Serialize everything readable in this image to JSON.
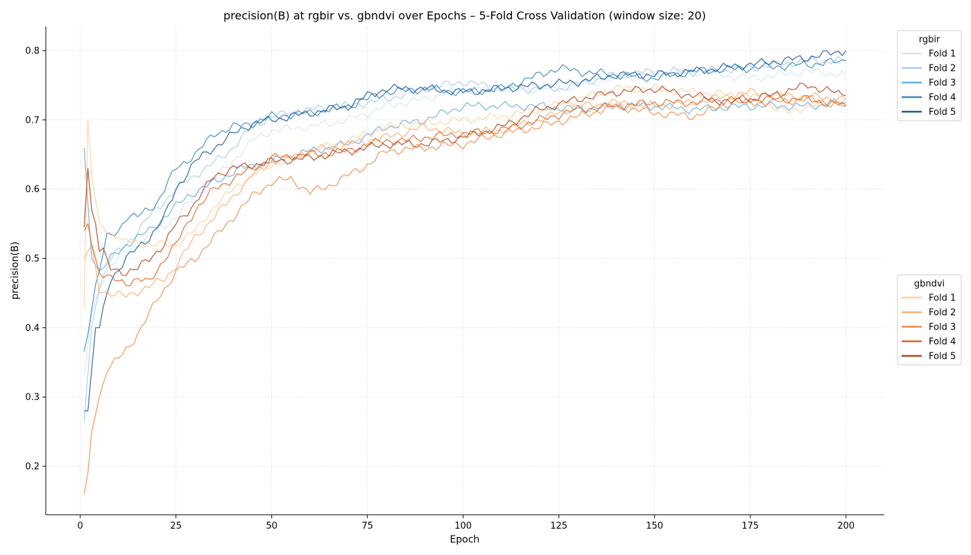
{
  "chart_data": {
    "type": "line",
    "title": "precision(B) at rgbir vs. gbndvi over Epochs – 5-Fold Cross Validation (window size: 20)",
    "xlabel": "Epoch",
    "ylabel": "precision(B)",
    "xlim": [
      -9,
      210
    ],
    "ylim": [
      0.13,
      0.835
    ],
    "xticks": [
      0,
      25,
      50,
      75,
      100,
      125,
      150,
      175,
      200
    ],
    "yticks": [
      0.2,
      0.3,
      0.4,
      0.5,
      0.6,
      0.7,
      0.8
    ],
    "grid": true,
    "legend_groups": [
      {
        "title": "rgbir",
        "placement": "upper-right-outside",
        "entries": [
          "Fold 1",
          "Fold 2",
          "Fold 3",
          "Fold 4",
          "Fold 5"
        ]
      },
      {
        "title": "gbndvi",
        "placement": "middle-right-outside",
        "entries": [
          "Fold 1",
          "Fold 2",
          "Fold 3",
          "Fold 4",
          "Fold 5"
        ]
      }
    ],
    "series": [
      {
        "name": "Fold 1",
        "group": "rgbir",
        "color": "#d4e4f4",
        "points": [
          [
            1,
            0.33
          ],
          [
            3,
            0.42
          ],
          [
            5,
            0.46
          ],
          [
            8,
            0.49
          ],
          [
            12,
            0.51
          ],
          [
            18,
            0.53
          ],
          [
            25,
            0.56
          ],
          [
            30,
            0.59
          ],
          [
            38,
            0.63
          ],
          [
            45,
            0.67
          ],
          [
            50,
            0.685
          ],
          [
            60,
            0.69
          ],
          [
            70,
            0.7
          ],
          [
            80,
            0.72
          ],
          [
            90,
            0.73
          ],
          [
            100,
            0.745
          ],
          [
            110,
            0.745
          ],
          [
            125,
            0.745
          ],
          [
            140,
            0.76
          ],
          [
            150,
            0.765
          ],
          [
            160,
            0.77
          ],
          [
            175,
            0.76
          ],
          [
            190,
            0.77
          ],
          [
            200,
            0.765
          ]
        ]
      },
      {
        "name": "Fold 2",
        "group": "rgbir",
        "color": "#a9cce3",
        "points": [
          [
            1,
            0.265
          ],
          [
            3,
            0.4
          ],
          [
            5,
            0.46
          ],
          [
            8,
            0.5
          ],
          [
            12,
            0.52
          ],
          [
            18,
            0.56
          ],
          [
            25,
            0.6
          ],
          [
            30,
            0.62
          ],
          [
            38,
            0.65
          ],
          [
            45,
            0.69
          ],
          [
            50,
            0.705
          ],
          [
            60,
            0.715
          ],
          [
            70,
            0.72
          ],
          [
            80,
            0.73
          ],
          [
            90,
            0.745
          ],
          [
            100,
            0.755
          ],
          [
            110,
            0.745
          ],
          [
            125,
            0.745
          ],
          [
            140,
            0.765
          ],
          [
            150,
            0.77
          ],
          [
            160,
            0.77
          ],
          [
            175,
            0.775
          ],
          [
            190,
            0.785
          ],
          [
            200,
            0.785
          ]
        ]
      },
      {
        "name": "Fold 3",
        "group": "rgbir",
        "color": "#6baed6",
        "points": [
          [
            1,
            0.66
          ],
          [
            3,
            0.5
          ],
          [
            5,
            0.48
          ],
          [
            8,
            0.5
          ],
          [
            12,
            0.52
          ],
          [
            18,
            0.54
          ],
          [
            22,
            0.56
          ],
          [
            28,
            0.59
          ],
          [
            35,
            0.61
          ],
          [
            42,
            0.63
          ],
          [
            50,
            0.64
          ],
          [
            60,
            0.655
          ],
          [
            70,
            0.665
          ],
          [
            80,
            0.69
          ],
          [
            90,
            0.7
          ],
          [
            100,
            0.72
          ],
          [
            110,
            0.72
          ],
          [
            120,
            0.72
          ],
          [
            130,
            0.715
          ],
          [
            140,
            0.72
          ],
          [
            150,
            0.72
          ],
          [
            160,
            0.715
          ],
          [
            175,
            0.72
          ],
          [
            190,
            0.72
          ],
          [
            200,
            0.725
          ]
        ]
      },
      {
        "name": "Fold 4",
        "group": "rgbir",
        "color": "#3b87c2",
        "points": [
          [
            1,
            0.365
          ],
          [
            4,
            0.46
          ],
          [
            7,
            0.53
          ],
          [
            10,
            0.54
          ],
          [
            12,
            0.56
          ],
          [
            15,
            0.56
          ],
          [
            20,
            0.58
          ],
          [
            25,
            0.63
          ],
          [
            30,
            0.65
          ],
          [
            35,
            0.68
          ],
          [
            40,
            0.69
          ],
          [
            45,
            0.695
          ],
          [
            50,
            0.705
          ],
          [
            60,
            0.71
          ],
          [
            70,
            0.72
          ],
          [
            80,
            0.74
          ],
          [
            90,
            0.745
          ],
          [
            100,
            0.74
          ],
          [
            110,
            0.745
          ],
          [
            120,
            0.765
          ],
          [
            125,
            0.775
          ],
          [
            130,
            0.77
          ],
          [
            140,
            0.765
          ],
          [
            150,
            0.76
          ],
          [
            160,
            0.77
          ],
          [
            175,
            0.775
          ],
          [
            190,
            0.78
          ],
          [
            200,
            0.785
          ]
        ]
      },
      {
        "name": "Fold 5",
        "group": "rgbir",
        "color": "#1c5a9b",
        "points": [
          [
            1,
            0.28
          ],
          [
            2,
            0.28
          ],
          [
            4,
            0.4
          ],
          [
            5,
            0.4
          ],
          [
            6,
            0.43
          ],
          [
            8,
            0.47
          ],
          [
            12,
            0.5
          ],
          [
            18,
            0.53
          ],
          [
            22,
            0.56
          ],
          [
            25,
            0.6
          ],
          [
            30,
            0.64
          ],
          [
            35,
            0.66
          ],
          [
            40,
            0.68
          ],
          [
            45,
            0.695
          ],
          [
            50,
            0.7
          ],
          [
            60,
            0.71
          ],
          [
            70,
            0.72
          ],
          [
            75,
            0.735
          ],
          [
            80,
            0.745
          ],
          [
            90,
            0.745
          ],
          [
            100,
            0.74
          ],
          [
            110,
            0.745
          ],
          [
            120,
            0.75
          ],
          [
            130,
            0.755
          ],
          [
            140,
            0.765
          ],
          [
            150,
            0.765
          ],
          [
            160,
            0.77
          ],
          [
            175,
            0.78
          ],
          [
            190,
            0.79
          ],
          [
            200,
            0.8
          ]
        ]
      },
      {
        "name": "Fold 1",
        "group": "gbndvi",
        "color": "#fdd0a2",
        "points": [
          [
            1,
            0.43
          ],
          [
            2,
            0.7
          ],
          [
            3,
            0.62
          ],
          [
            5,
            0.55
          ],
          [
            7,
            0.54
          ],
          [
            10,
            0.53
          ],
          [
            12,
            0.525
          ],
          [
            18,
            0.52
          ],
          [
            25,
            0.52
          ],
          [
            30,
            0.54
          ],
          [
            35,
            0.575
          ],
          [
            40,
            0.6
          ],
          [
            45,
            0.62
          ],
          [
            50,
            0.635
          ],
          [
            60,
            0.655
          ],
          [
            70,
            0.67
          ],
          [
            80,
            0.69
          ],
          [
            90,
            0.695
          ],
          [
            100,
            0.7
          ],
          [
            110,
            0.705
          ],
          [
            120,
            0.715
          ],
          [
            130,
            0.73
          ],
          [
            140,
            0.745
          ],
          [
            150,
            0.745
          ],
          [
            160,
            0.74
          ],
          [
            175,
            0.735
          ],
          [
            185,
            0.71
          ],
          [
            190,
            0.72
          ],
          [
            200,
            0.73
          ]
        ]
      },
      {
        "name": "Fold 2",
        "group": "gbndvi",
        "color": "#fdae6b",
        "points": [
          [
            1,
            0.5
          ],
          [
            3,
            0.52
          ],
          [
            5,
            0.455
          ],
          [
            8,
            0.45
          ],
          [
            12,
            0.445
          ],
          [
            18,
            0.46
          ],
          [
            22,
            0.47
          ],
          [
            25,
            0.49
          ],
          [
            30,
            0.53
          ],
          [
            35,
            0.56
          ],
          [
            40,
            0.59
          ],
          [
            45,
            0.62
          ],
          [
            50,
            0.64
          ],
          [
            55,
            0.645
          ],
          [
            60,
            0.655
          ],
          [
            70,
            0.665
          ],
          [
            80,
            0.675
          ],
          [
            90,
            0.69
          ],
          [
            100,
            0.68
          ],
          [
            110,
            0.685
          ],
          [
            120,
            0.7
          ],
          [
            130,
            0.72
          ],
          [
            140,
            0.725
          ],
          [
            150,
            0.72
          ],
          [
            160,
            0.725
          ],
          [
            175,
            0.74
          ],
          [
            185,
            0.735
          ],
          [
            200,
            0.73
          ]
        ]
      },
      {
        "name": "Fold 3",
        "group": "gbndvi",
        "color": "#f08c4a",
        "points": [
          [
            1,
            0.16
          ],
          [
            2,
            0.19
          ],
          [
            3,
            0.25
          ],
          [
            5,
            0.3
          ],
          [
            7,
            0.34
          ],
          [
            10,
            0.355
          ],
          [
            13,
            0.375
          ],
          [
            16,
            0.4
          ],
          [
            20,
            0.44
          ],
          [
            25,
            0.48
          ],
          [
            30,
            0.5
          ],
          [
            35,
            0.53
          ],
          [
            40,
            0.56
          ],
          [
            45,
            0.59
          ],
          [
            50,
            0.61
          ],
          [
            55,
            0.615
          ],
          [
            60,
            0.595
          ],
          [
            65,
            0.605
          ],
          [
            70,
            0.62
          ],
          [
            75,
            0.635
          ],
          [
            80,
            0.655
          ],
          [
            90,
            0.66
          ],
          [
            100,
            0.665
          ],
          [
            110,
            0.68
          ],
          [
            120,
            0.69
          ],
          [
            130,
            0.705
          ],
          [
            140,
            0.72
          ],
          [
            150,
            0.71
          ],
          [
            160,
            0.705
          ],
          [
            170,
            0.725
          ],
          [
            180,
            0.725
          ],
          [
            190,
            0.73
          ],
          [
            200,
            0.72
          ]
        ]
      },
      {
        "name": "Fold 4",
        "group": "gbndvi",
        "color": "#e0652a",
        "points": [
          [
            1,
            0.54
          ],
          [
            2,
            0.55
          ],
          [
            3,
            0.52
          ],
          [
            5,
            0.48
          ],
          [
            8,
            0.47
          ],
          [
            12,
            0.465
          ],
          [
            15,
            0.47
          ],
          [
            18,
            0.465
          ],
          [
            22,
            0.5
          ],
          [
            25,
            0.52
          ],
          [
            30,
            0.57
          ],
          [
            35,
            0.6
          ],
          [
            40,
            0.615
          ],
          [
            45,
            0.63
          ],
          [
            50,
            0.645
          ],
          [
            60,
            0.65
          ],
          [
            70,
            0.655
          ],
          [
            75,
            0.665
          ],
          [
            80,
            0.67
          ],
          [
            85,
            0.67
          ],
          [
            90,
            0.675
          ],
          [
            100,
            0.68
          ],
          [
            110,
            0.685
          ],
          [
            120,
            0.7
          ],
          [
            130,
            0.715
          ],
          [
            140,
            0.72
          ],
          [
            150,
            0.725
          ],
          [
            160,
            0.725
          ],
          [
            170,
            0.73
          ],
          [
            180,
            0.73
          ],
          [
            190,
            0.73
          ],
          [
            200,
            0.72
          ]
        ]
      },
      {
        "name": "Fold 5",
        "group": "gbndvi",
        "color": "#b5451c",
        "points": [
          [
            1,
            0.545
          ],
          [
            2,
            0.63
          ],
          [
            3,
            0.57
          ],
          [
            4,
            0.55
          ],
          [
            5,
            0.51
          ],
          [
            6,
            0.515
          ],
          [
            8,
            0.485
          ],
          [
            12,
            0.48
          ],
          [
            15,
            0.485
          ],
          [
            18,
            0.5
          ],
          [
            22,
            0.52
          ],
          [
            25,
            0.55
          ],
          [
            30,
            0.58
          ],
          [
            35,
            0.62
          ],
          [
            40,
            0.63
          ],
          [
            45,
            0.635
          ],
          [
            50,
            0.64
          ],
          [
            60,
            0.645
          ],
          [
            70,
            0.655
          ],
          [
            80,
            0.665
          ],
          [
            90,
            0.665
          ],
          [
            100,
            0.675
          ],
          [
            110,
            0.69
          ],
          [
            120,
            0.715
          ],
          [
            130,
            0.73
          ],
          [
            140,
            0.74
          ],
          [
            150,
            0.745
          ],
          [
            160,
            0.735
          ],
          [
            170,
            0.725
          ],
          [
            180,
            0.735
          ],
          [
            190,
            0.75
          ],
          [
            200,
            0.735
          ]
        ]
      }
    ]
  }
}
